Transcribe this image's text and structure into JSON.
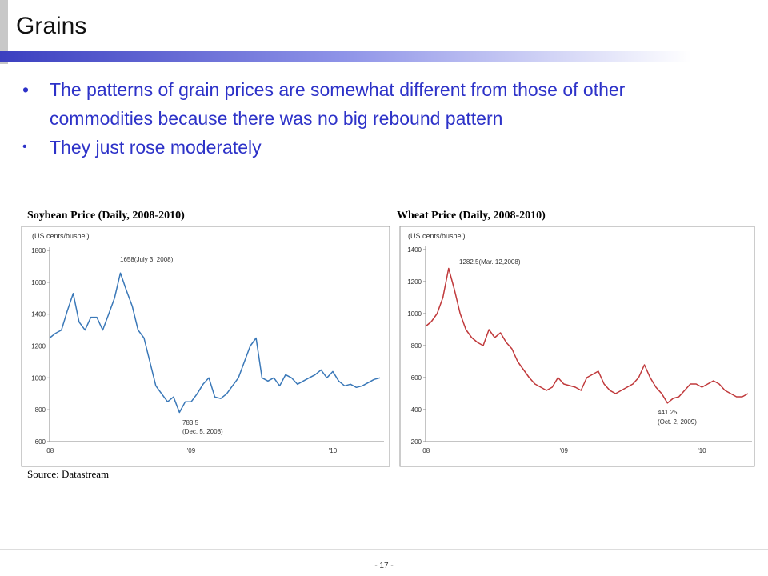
{
  "title": "Grains",
  "bullets": [
    "The patterns of grain prices are somewhat different from those of other commodities because there was no big rebound pattern",
    "They just rose moderately"
  ],
  "source": "Source: Datastream",
  "page_number": "- 17 -",
  "chart_data": [
    {
      "type": "line",
      "title": "Soybean Price (Daily,  2008-2010)",
      "y_label": "(US cents/bushel)",
      "annotations": [
        "1658(July  3, 2008)",
        "783.5",
        "(Dec. 5, 2008)"
      ],
      "categories": [
        "'08",
        null,
        null,
        null,
        null,
        null,
        null,
        null,
        null,
        null,
        null,
        null,
        null,
        null,
        null,
        null,
        null,
        null,
        null,
        null,
        null,
        null,
        null,
        null,
        "'09",
        null,
        null,
        null,
        null,
        null,
        null,
        null,
        null,
        null,
        null,
        null,
        null,
        null,
        null,
        null,
        null,
        null,
        null,
        null,
        null,
        null,
        null,
        null,
        "'10",
        null,
        null,
        null,
        null,
        null,
        null,
        null,
        null
      ],
      "series": [
        {
          "name": "Soybean",
          "color": "#3a78b8",
          "values": [
            1250,
            1280,
            1300,
            1420,
            1530,
            1350,
            1300,
            1380,
            1380,
            1300,
            1400,
            1500,
            1658,
            1550,
            1450,
            1300,
            1250,
            1100,
            950,
            900,
            850,
            880,
            783.5,
            850,
            850,
            900,
            960,
            1000,
            880,
            870,
            900,
            950,
            1000,
            1100,
            1200,
            1250,
            1000,
            980,
            1000,
            950,
            1020,
            1000,
            960,
            980,
            1000,
            1020,
            1050,
            1000,
            1040,
            980,
            950,
            960,
            940,
            950,
            970,
            990,
            1000
          ]
        }
      ],
      "ylim": [
        600,
        1800
      ],
      "yticks": [
        600,
        800,
        1000,
        1200,
        1400,
        1600,
        1800
      ]
    },
    {
      "type": "line",
      "title": "Wheat Price (Daily,  2008-2010)",
      "y_label": "(US cents/bushel)",
      "annotations": [
        "1282.5(Mar. 12,2008)",
        "441.25",
        "(Oct. 2, 2009)"
      ],
      "categories": [
        "'08",
        null,
        null,
        null,
        null,
        null,
        null,
        null,
        null,
        null,
        null,
        null,
        null,
        null,
        null,
        null,
        null,
        null,
        null,
        null,
        null,
        null,
        null,
        null,
        "'09",
        null,
        null,
        null,
        null,
        null,
        null,
        null,
        null,
        null,
        null,
        null,
        null,
        null,
        null,
        null,
        null,
        null,
        null,
        null,
        null,
        null,
        null,
        null,
        "'10",
        null,
        null,
        null,
        null,
        null,
        null,
        null,
        null
      ],
      "series": [
        {
          "name": "Wheat",
          "color": "#c0393b",
          "values": [
            920,
            950,
            1000,
            1100,
            1282.5,
            1150,
            1000,
            900,
            850,
            820,
            800,
            900,
            850,
            880,
            820,
            780,
            700,
            650,
            600,
            560,
            540,
            520,
            540,
            600,
            560,
            550,
            540,
            520,
            600,
            620,
            640,
            560,
            520,
            500,
            520,
            540,
            560,
            600,
            680,
            600,
            540,
            500,
            441.25,
            470,
            480,
            520,
            560,
            560,
            540,
            560,
            580,
            560,
            520,
            500,
            480,
            480,
            500
          ]
        }
      ],
      "ylim": [
        200,
        1400
      ],
      "yticks": [
        200,
        400,
        600,
        800,
        1000,
        1200,
        1400
      ]
    }
  ]
}
